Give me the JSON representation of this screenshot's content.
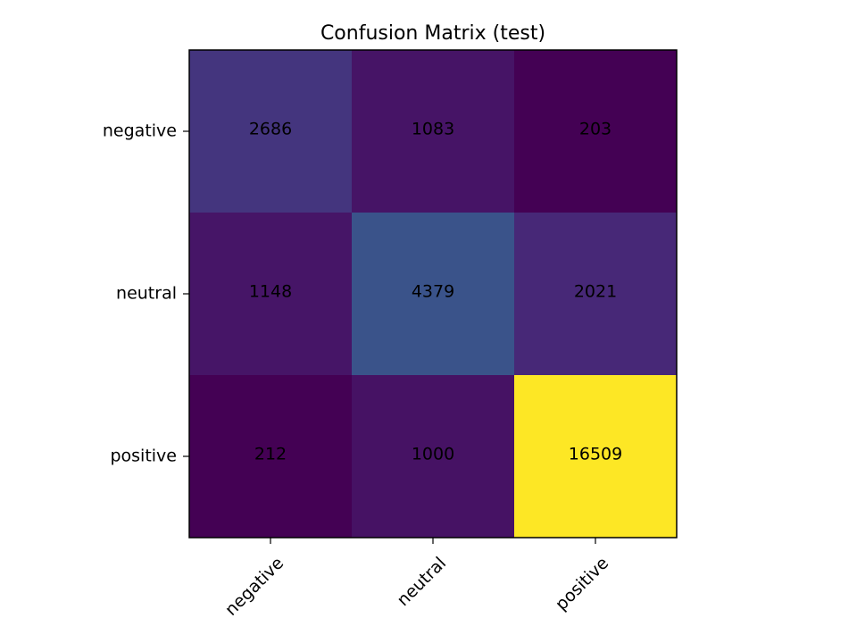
{
  "chart_data": {
    "type": "heatmap",
    "title": "Confusion Matrix (test)",
    "xlabel": "",
    "ylabel": "",
    "x_categories": [
      "negative",
      "neutral",
      "positive"
    ],
    "y_categories": [
      "negative",
      "neutral",
      "positive"
    ],
    "values": [
      [
        2686,
        1083,
        203
      ],
      [
        1148,
        4379,
        2021
      ],
      [
        212,
        1000,
        16509
      ]
    ],
    "colormap": "viridis",
    "color_range": [
      203,
      16509
    ],
    "grid": false,
    "legend": "none"
  }
}
